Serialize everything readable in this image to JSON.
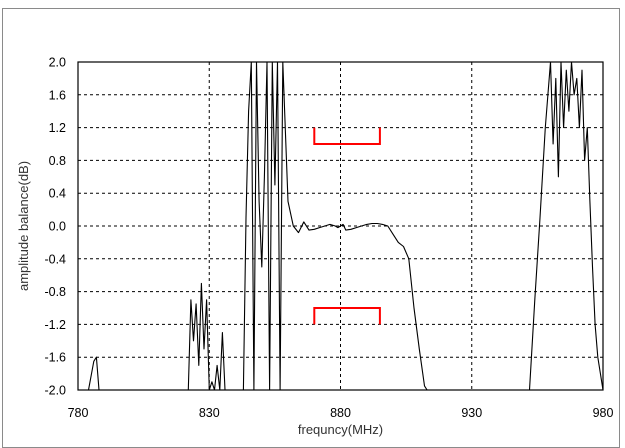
{
  "chart_data": {
    "type": "line",
    "title": "",
    "xlabel": "frequncy(MHz)",
    "ylabel": "amplitude balance(dB)",
    "xlim": [
      780,
      980
    ],
    "ylim": [
      -2.0,
      2.0
    ],
    "x_ticks": [
      "780",
      "830",
      "880",
      "930",
      "980"
    ],
    "y_ticks": [
      "2.0",
      "1.6",
      "1.2",
      "0.8",
      "0.4",
      "0.0",
      "-0.4",
      "-0.8",
      "-1.2",
      "-1.6",
      "-2.0"
    ],
    "grid": true,
    "series": [
      {
        "color": "#000000",
        "x": [
          780,
          784,
          786,
          787,
          788,
          789,
          790,
          822,
          823,
          824,
          825,
          826,
          827,
          828,
          829,
          830,
          831,
          832,
          833,
          834,
          835,
          836,
          843,
          844,
          845,
          846,
          847,
          848,
          849,
          850,
          851,
          852,
          853,
          854,
          855,
          856,
          857,
          858,
          860,
          862,
          864,
          866,
          868,
          870,
          872,
          874,
          876,
          878,
          879,
          880,
          881,
          882,
          884,
          886,
          888,
          890,
          892,
          894,
          896,
          898,
          900,
          902,
          904,
          906,
          908,
          910,
          912,
          913,
          952,
          954,
          956,
          958,
          959,
          960,
          961,
          962,
          963,
          964,
          965,
          966,
          967,
          968,
          969,
          970,
          971,
          972,
          973,
          974,
          975,
          976,
          977,
          978,
          979,
          980
        ],
        "y": [
          -2.0,
          -2.0,
          -1.65,
          -1.6,
          -2.0,
          -2.0,
          -2.0,
          -2.0,
          -0.9,
          -1.4,
          -0.95,
          -1.7,
          -0.7,
          -1.5,
          -0.9,
          -2.0,
          -1.9,
          -2.0,
          -1.7,
          -2.0,
          -1.3,
          -2.0,
          -2.0,
          0.1,
          1.4,
          2.0,
          -2.0,
          2.0,
          0.3,
          -0.5,
          0.6,
          2.0,
          -2.0,
          2.0,
          0.5,
          2.0,
          -2.0,
          2.0,
          0.3,
          0.0,
          -0.08,
          0.05,
          -0.05,
          -0.04,
          -0.02,
          0.0,
          0.02,
          0.0,
          -0.02,
          0.0,
          0.02,
          -0.05,
          -0.04,
          -0.02,
          0.0,
          0.02,
          0.03,
          0.03,
          0.02,
          0.0,
          -0.1,
          -0.2,
          -0.25,
          -0.4,
          -1.0,
          -1.5,
          -1.95,
          -2.0,
          -2.0,
          -0.9,
          0.1,
          1.2,
          1.6,
          2.0,
          1.0,
          1.8,
          0.6,
          2.0,
          1.2,
          1.9,
          1.4,
          2.0,
          1.6,
          1.8,
          1.2,
          1.9,
          0.8,
          1.2,
          0.3,
          -0.5,
          -1.2,
          -1.6,
          -1.8,
          -2.0
        ]
      }
    ],
    "markers": [
      {
        "color": "#ff0000",
        "x": [
          870,
          870,
          895,
          895
        ],
        "y": [
          1.2,
          1.0,
          1.0,
          1.2
        ]
      },
      {
        "color": "#ff0000",
        "x": [
          870,
          870,
          895,
          895
        ],
        "y": [
          -1.2,
          -1.0,
          -1.0,
          -1.2
        ]
      }
    ]
  }
}
